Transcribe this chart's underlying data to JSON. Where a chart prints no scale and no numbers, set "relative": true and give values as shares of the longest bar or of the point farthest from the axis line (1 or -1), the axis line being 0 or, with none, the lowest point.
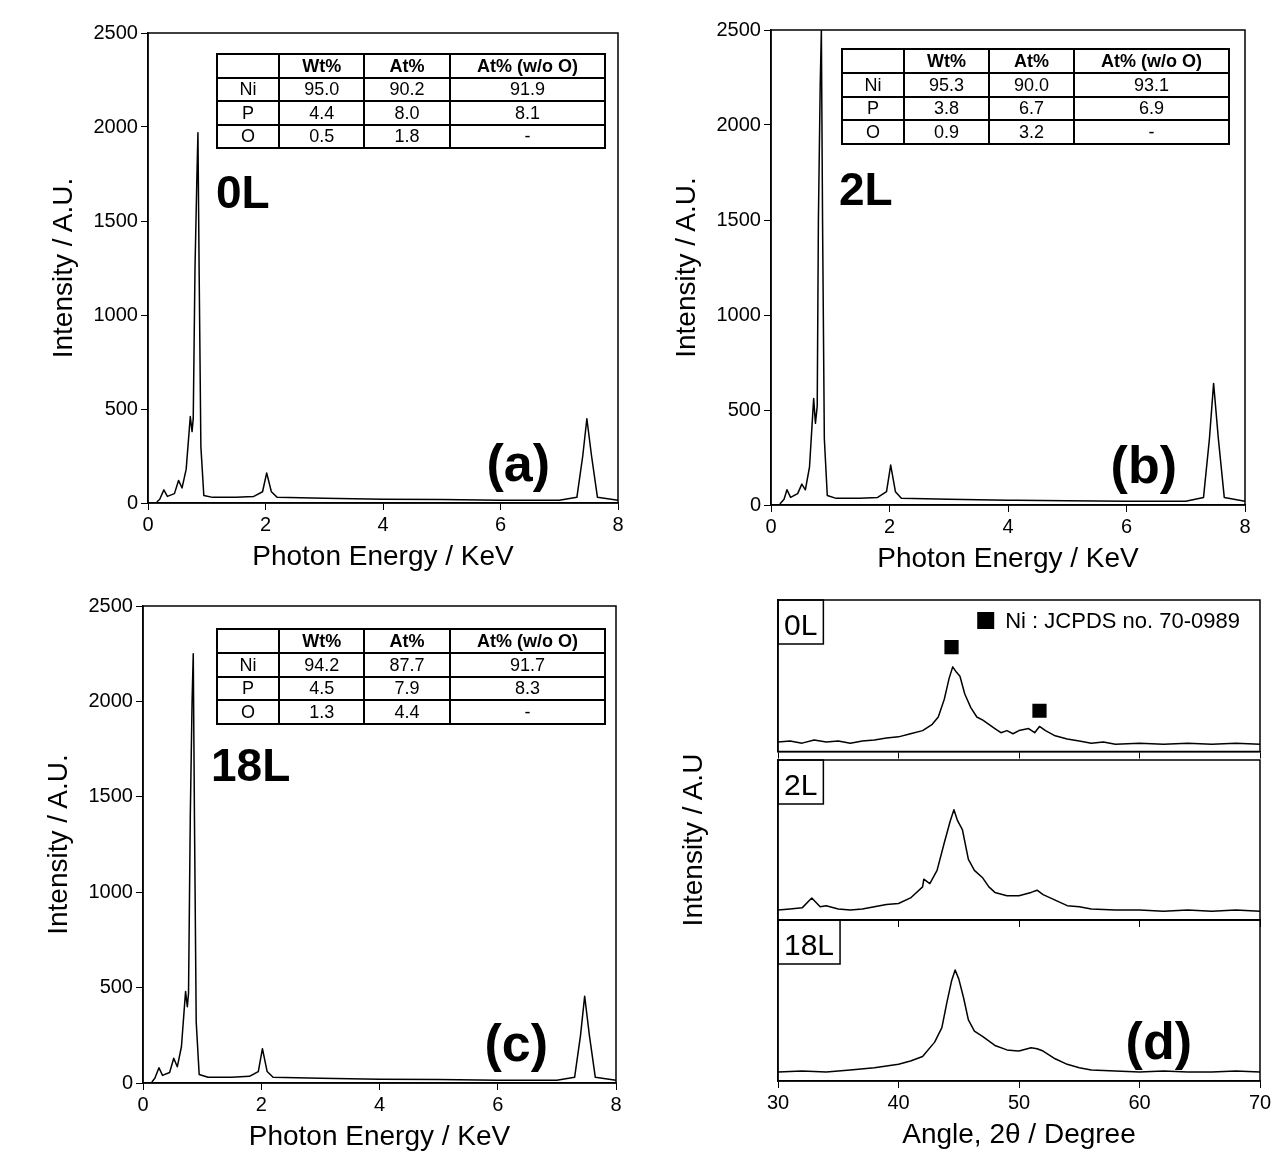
{
  "chart_data": [
    {
      "type": "line",
      "color": "#000000",
      "xlim": [
        0,
        8
      ],
      "xticks": [
        0,
        2,
        4,
        6,
        8
      ],
      "ylim": [
        0,
        2500
      ],
      "yticks": [
        0,
        500,
        1000,
        1500,
        2000,
        2500
      ],
      "xlabel": "Photon Energy / KeV",
      "ylabel": "Intensity / A.U.",
      "annotations": [
        "0L",
        "(a)"
      ],
      "x": [
        0.15,
        0.2,
        0.27,
        0.33,
        0.45,
        0.52,
        0.58,
        0.65,
        0.72,
        0.75,
        0.77,
        0.8,
        0.83,
        0.85,
        0.87,
        0.9,
        0.95,
        1.1,
        1.5,
        1.8,
        1.95,
        2.02,
        2.1,
        2.2,
        3,
        4,
        5,
        6,
        7,
        7.3,
        7.4,
        7.47,
        7.55,
        7.65,
        8
      ],
      "values": [
        5,
        20,
        70,
        35,
        50,
        120,
        80,
        180,
        460,
        380,
        450,
        1250,
        1700,
        1970,
        1250,
        300,
        40,
        30,
        30,
        35,
        60,
        160,
        60,
        30,
        25,
        20,
        18,
        15,
        15,
        30,
        250,
        448,
        250,
        30,
        15
      ]
    },
    {
      "type": "other",
      "categories": [
        "Wt%",
        "At%",
        "At% (w/o O)"
      ],
      "y_categories": [
        "Ni",
        "P",
        "O"
      ],
      "cell_labels": [
        [
          "95.0",
          "90.2",
          "91.9"
        ],
        [
          "4.4",
          "8.0",
          "8.1"
        ],
        [
          "0.5",
          "1.8",
          "-"
        ]
      ]
    },
    {
      "type": "line",
      "color": "#000000",
      "xlim": [
        0,
        8
      ],
      "xticks": [
        0,
        2,
        4,
        6,
        8
      ],
      "ylim": [
        0,
        2500
      ],
      "yticks": [
        0,
        500,
        1000,
        1500,
        2000,
        2500
      ],
      "xlabel": "Photon Energy / KeV",
      "ylabel": "Intensity / A.U.",
      "annotations": [
        "2L",
        "(b)"
      ],
      "x": [
        0.15,
        0.22,
        0.27,
        0.33,
        0.45,
        0.52,
        0.58,
        0.65,
        0.72,
        0.75,
        0.78,
        0.8,
        0.83,
        0.85,
        0.87,
        0.9,
        0.95,
        1.1,
        1.5,
        1.8,
        1.95,
        2.02,
        2.1,
        2.2,
        3,
        4,
        5,
        6,
        7,
        7.3,
        7.4,
        7.47,
        7.55,
        7.65,
        8
      ],
      "values": [
        5,
        30,
        80,
        40,
        60,
        110,
        80,
        200,
        560,
        430,
        520,
        1500,
        2200,
        2500,
        1500,
        350,
        50,
        35,
        35,
        40,
        70,
        210,
        70,
        35,
        30,
        25,
        22,
        20,
        20,
        40,
        350,
        640,
        350,
        40,
        20
      ]
    },
    {
      "type": "other",
      "categories": [
        "Wt%",
        "At%",
        "At% (w/o O)"
      ],
      "y_categories": [
        "Ni",
        "P",
        "O"
      ],
      "cell_labels": [
        [
          "95.3",
          "90.0",
          "93.1"
        ],
        [
          "3.8",
          "6.7",
          "6.9"
        ],
        [
          "0.9",
          "3.2",
          "-"
        ]
      ]
    },
    {
      "type": "line",
      "color": "#000000",
      "xlim": [
        0,
        8
      ],
      "xticks": [
        0,
        2,
        4,
        6,
        8
      ],
      "ylim": [
        0,
        2500
      ],
      "yticks": [
        0,
        500,
        1000,
        1500,
        2000,
        2500
      ],
      "xlabel": "Photon Energy / KeV",
      "ylabel": "Intensity / A.U.",
      "annotations": [
        "18L",
        "(c)"
      ],
      "x": [
        0.15,
        0.2,
        0.27,
        0.33,
        0.45,
        0.52,
        0.58,
        0.65,
        0.72,
        0.75,
        0.77,
        0.8,
        0.83,
        0.85,
        0.87,
        0.9,
        0.95,
        1.1,
        1.5,
        1.8,
        1.95,
        2.02,
        2.1,
        2.2,
        3,
        4,
        5,
        6,
        7,
        7.3,
        7.4,
        7.47,
        7.55,
        7.65,
        8
      ],
      "values": [
        5,
        25,
        80,
        40,
        55,
        130,
        85,
        190,
        480,
        400,
        470,
        1400,
        2000,
        2250,
        1400,
        320,
        45,
        30,
        30,
        35,
        60,
        180,
        60,
        30,
        25,
        20,
        18,
        15,
        15,
        30,
        250,
        455,
        250,
        30,
        15
      ]
    },
    {
      "type": "other",
      "categories": [
        "Wt%",
        "At%",
        "At% (w/o O)"
      ],
      "y_categories": [
        "Ni",
        "P",
        "O"
      ],
      "cell_labels": [
        [
          "94.2",
          "87.7",
          "91.7"
        ],
        [
          "4.5",
          "7.9",
          "8.3"
        ],
        [
          "1.3",
          "4.4",
          "-"
        ]
      ]
    },
    {
      "type": "line",
      "relative": true,
      "xlim": [
        30,
        70
      ],
      "xticks": [
        30,
        40,
        50,
        60,
        70
      ],
      "tick_labels": false,
      "legend": "top right",
      "annotations": [
        "0L"
      ],
      "series": [
        {
          "type": "line",
          "color": "#000000",
          "x": [
            30,
            31,
            32,
            33,
            34,
            35,
            36,
            37,
            38,
            39,
            40,
            41,
            42,
            42.8,
            43.3,
            43.8,
            44.2,
            44.5,
            44.8,
            45.1,
            45.5,
            46,
            46.5,
            47,
            47.5,
            48,
            48.5,
            49,
            49.5,
            50,
            50.8,
            51.3,
            51.7,
            52.2,
            53,
            54,
            55,
            56,
            57,
            58,
            60,
            62,
            64,
            66,
            68,
            70
          ],
          "values": [
            0.09,
            0.1,
            0.08,
            0.11,
            0.09,
            0.1,
            0.08,
            0.1,
            0.11,
            0.13,
            0.14,
            0.17,
            0.2,
            0.26,
            0.33,
            0.5,
            0.7,
            0.81,
            0.76,
            0.72,
            0.55,
            0.42,
            0.33,
            0.3,
            0.26,
            0.22,
            0.18,
            0.2,
            0.17,
            0.2,
            0.22,
            0.18,
            0.24,
            0.2,
            0.15,
            0.12,
            0.1,
            0.08,
            0.09,
            0.07,
            0.08,
            0.07,
            0.08,
            0.07,
            0.08,
            0.07
          ]
        },
        {
          "type": "scatter",
          "name": "Ni : JCPDS no. 70-0989",
          "color": "#000000",
          "marker": "square",
          "x": [
            44.4,
            51.7
          ],
          "values": [
            1,
            0.39
          ]
        }
      ]
    },
    {
      "type": "line",
      "relative": true,
      "xlim": [
        30,
        70
      ],
      "xticks": [
        30,
        40,
        50,
        60,
        70
      ],
      "tick_labels": false,
      "ylabel": "Intensity / A.U",
      "annotations": [
        "2L"
      ],
      "color": "#000000",
      "x": [
        30,
        31,
        32,
        32.8,
        33.5,
        34,
        35,
        36,
        37,
        38,
        39,
        40,
        41,
        42,
        42.1,
        42.6,
        43.2,
        43.8,
        44.3,
        44.6,
        44.9,
        45.3,
        45.8,
        46.3,
        47,
        47.5,
        48,
        49,
        50,
        51,
        51.5,
        52,
        53,
        54,
        55,
        56,
        58,
        60,
        62,
        64,
        66,
        68,
        70
      ],
      "values": [
        0.09,
        0.1,
        0.11,
        0.2,
        0.12,
        0.13,
        0.1,
        0.09,
        0.1,
        0.12,
        0.14,
        0.15,
        0.2,
        0.3,
        0.37,
        0.33,
        0.45,
        0.7,
        0.9,
        1,
        0.9,
        0.82,
        0.55,
        0.45,
        0.38,
        0.3,
        0.25,
        0.22,
        0.22,
        0.25,
        0.27,
        0.23,
        0.18,
        0.13,
        0.12,
        0.1,
        0.09,
        0.09,
        0.08,
        0.09,
        0.08,
        0.09,
        0.08
      ]
    },
    {
      "type": "line",
      "relative": true,
      "xlim": [
        30,
        70
      ],
      "xticks": [
        30,
        40,
        50,
        60,
        70
      ],
      "tick_labels": "x",
      "xlabel": "Angle, 2θ / Degree",
      "annotations": [
        "18L",
        "(d)"
      ],
      "color": "#000000",
      "x": [
        30,
        32,
        34,
        36,
        38,
        40,
        41,
        42,
        43,
        43.6,
        44,
        44.4,
        44.7,
        45,
        45.4,
        45.8,
        46.3,
        47,
        48,
        49,
        50,
        51,
        51.5,
        52,
        53,
        54,
        55,
        56,
        58,
        60,
        62,
        64,
        66,
        68,
        70
      ],
      "values": [
        0.08,
        0.09,
        0.08,
        0.1,
        0.12,
        0.15,
        0.18,
        0.22,
        0.35,
        0.48,
        0.7,
        0.9,
        1,
        0.92,
        0.75,
        0.55,
        0.45,
        0.4,
        0.32,
        0.28,
        0.27,
        0.3,
        0.29,
        0.27,
        0.2,
        0.15,
        0.12,
        0.1,
        0.09,
        0.08,
        0.09,
        0.08,
        0.08,
        0.09,
        0.08
      ]
    }
  ]
}
